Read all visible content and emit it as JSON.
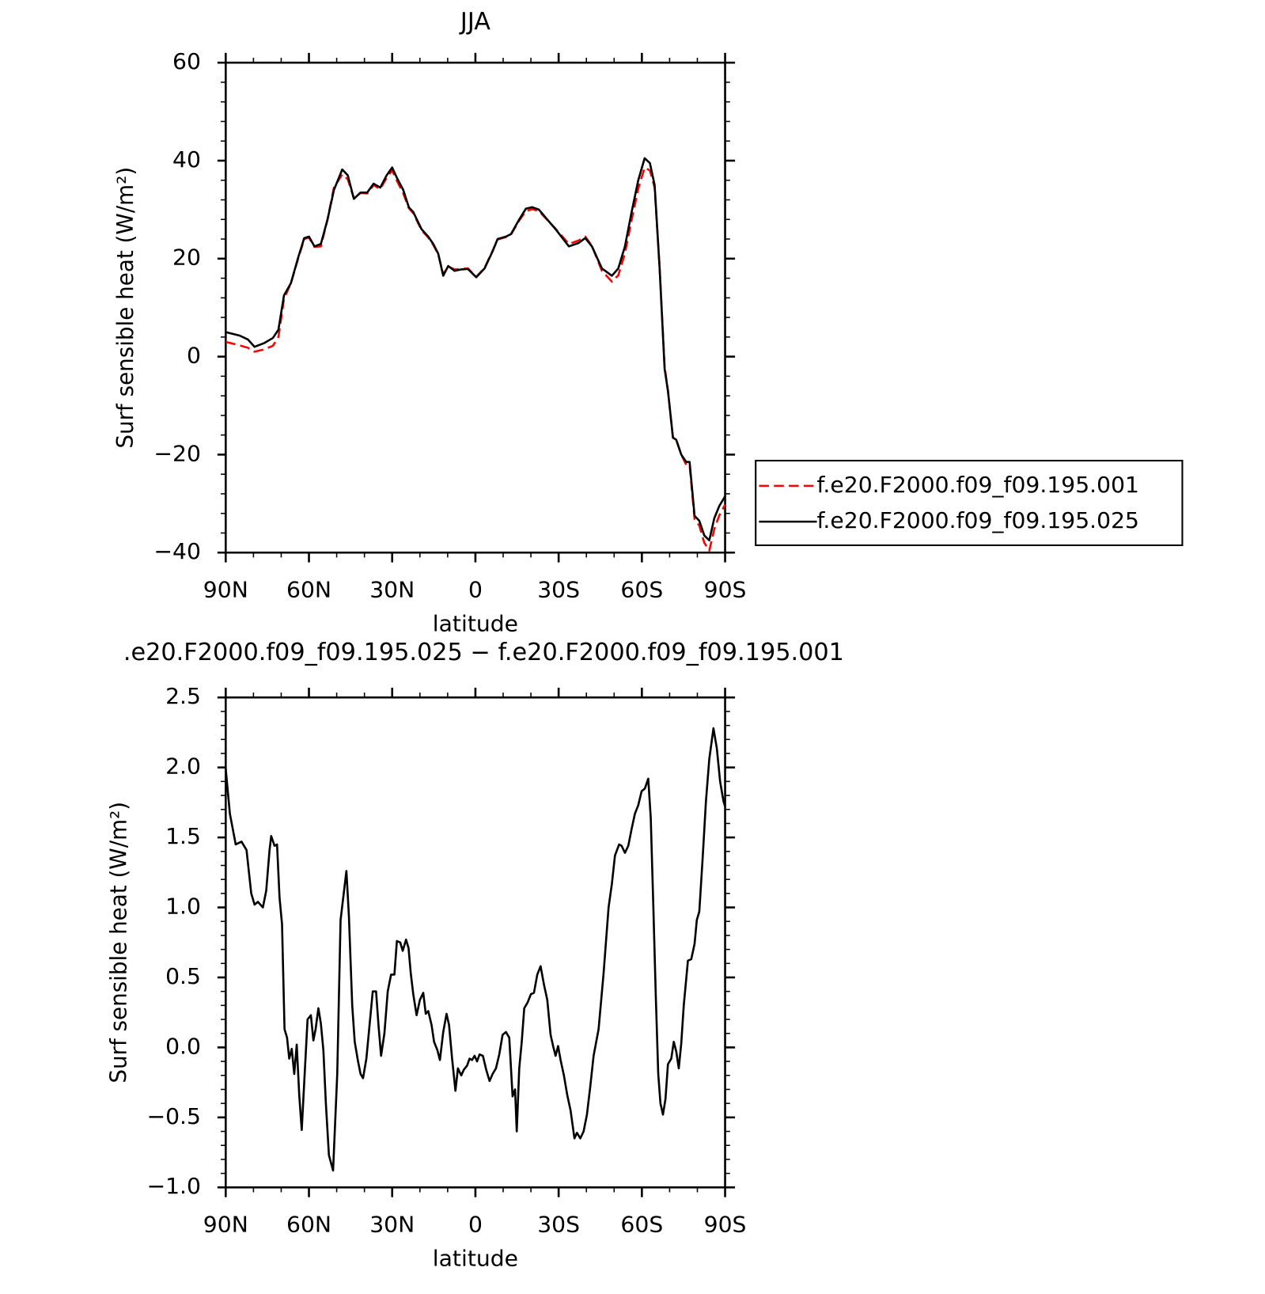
{
  "chart_data": [
    {
      "type": "line",
      "title": "JJA",
      "x_label": "latitude",
      "y_label": "Surf sensible heat (W/m²)",
      "xlim": [
        90,
        -90
      ],
      "xticks": [
        {
          "value": 90,
          "label": "90N"
        },
        {
          "value": 60,
          "label": "60N"
        },
        {
          "value": 30,
          "label": "30N"
        },
        0,
        {
          "value": -30,
          "label": "30S"
        },
        {
          "value": -60,
          "label": "60S"
        },
        {
          "value": -90,
          "label": "90S"
        }
      ],
      "ylim": [
        -40,
        60
      ],
      "yticks": [
        {
          "value": -40,
          "label": "−40"
        },
        {
          "value": -20,
          "label": "−20"
        },
        0,
        20,
        40,
        60
      ],
      "legend": "right",
      "x": [
        90,
        85,
        82,
        79.6,
        76,
        73,
        71,
        69,
        66.5,
        64,
        61.7,
        60,
        58,
        55.7,
        53.3,
        51,
        48,
        46,
        43.8,
        41.4,
        39,
        36.7,
        34.3,
        32,
        30,
        28.3,
        26,
        24,
        22.4,
        19.4,
        17,
        15.2,
        13.4,
        11.6,
        9.8,
        7.5,
        5.1,
        2.7,
        -0.3,
        -3.3,
        -6.2,
        -8,
        -11,
        -12.8,
        -15.8,
        -18.2,
        -20.5,
        -22.9,
        -25.9,
        -28.9,
        -33.7,
        -37.2,
        -39.6,
        -42,
        -45.6,
        -49.2,
        -51.5,
        -53.9,
        -56.3,
        -58.7,
        -61,
        -62.9,
        -64.6,
        -66.4,
        -68.2,
        -69.4,
        -71.2,
        -72.4,
        -74.2,
        -76,
        -77.2,
        -79,
        -80.7,
        -82.5,
        -84.3,
        -86.1,
        -87.9,
        -90
      ],
      "series": [
        {
          "name": "f.e20.F2000.f09_f09.195.001",
          "color": "#ff0000",
          "dashed": true,
          "values": [
            3,
            2.3,
            1.8,
            1,
            1.5,
            2.2,
            4,
            11.8,
            15,
            19.8,
            24,
            24.3,
            22.4,
            22.5,
            28,
            34.5,
            37.2,
            36.2,
            32.3,
            33.4,
            33.3,
            35,
            34.2,
            36.5,
            38,
            35.9,
            33.3,
            30.3,
            29.3,
            25.8,
            24.3,
            22.8,
            20.9,
            16.8,
            18.4,
            17.8,
            17.9,
            18,
            16.3,
            18.1,
            21.6,
            23.9,
            24.4,
            24.9,
            27.8,
            29.7,
            30.1,
            29.7,
            27.9,
            26.1,
            23,
            23.7,
            24.5,
            22.6,
            17.5,
            15.3,
            16.6,
            21.1,
            27.9,
            34.3,
            38.6,
            38,
            34.5,
            18.2,
            -2.1,
            -6.9,
            -16.6,
            -17,
            -20,
            -22.1,
            -22.1,
            -33.2,
            -34.5,
            -38,
            -39.6,
            -35.2,
            -32.4,
            -30.2
          ]
        },
        {
          "name": "f.e20.F2000.f09_f09.195.025",
          "color": "#000000",
          "dashed": false,
          "values": [
            5,
            4.3,
            3.5,
            2,
            2.8,
            3.8,
            5.5,
            12.5,
            15,
            20,
            24.2,
            24.5,
            22.5,
            23,
            28,
            34,
            38.2,
            37,
            32.2,
            33.5,
            33.5,
            35.3,
            34.5,
            37,
            38.6,
            36.5,
            34,
            30.5,
            29.5,
            26,
            24.5,
            23,
            21,
            16.5,
            18.5,
            17.5,
            17.8,
            17.9,
            16.2,
            18,
            21.5,
            24,
            24.5,
            25,
            28,
            30.2,
            30.5,
            30,
            28,
            26,
            22.5,
            23.2,
            24.2,
            22.5,
            18,
            16.5,
            18,
            22.5,
            29.5,
            36,
            40.5,
            39.5,
            35,
            18,
            -2.5,
            -7,
            -16.5,
            -17,
            -20,
            -21.5,
            -21.5,
            -32.5,
            -33.5,
            -36.5,
            -37.5,
            -33,
            -30.5,
            -28.5
          ]
        }
      ]
    },
    {
      "type": "line",
      "title": ".e20.F2000.f09_f09.195.025 − f.e20.F2000.f09_f09.195.001",
      "x_label": "latitude",
      "y_label": "Surf sensible heat (W/m²)",
      "xlim": [
        90,
        -90
      ],
      "xticks": [
        {
          "value": 90,
          "label": "90N"
        },
        {
          "value": 60,
          "label": "60N"
        },
        {
          "value": 30,
          "label": "30N"
        },
        0,
        {
          "value": -30,
          "label": "30S"
        },
        {
          "value": -60,
          "label": "60S"
        },
        {
          "value": -90,
          "label": "90S"
        }
      ],
      "ylim": [
        -1,
        2.5
      ],
      "yticks": [
        {
          "value": -1,
          "label": "−1.0"
        },
        {
          "value": -0.5,
          "label": "−0.5"
        },
        {
          "value": 0,
          "label": "0.0"
        },
        0.5,
        {
          "value": 1,
          "label": "1.0"
        },
        1.5,
        {
          "value": 2,
          "label": "2.0"
        },
        2.5
      ],
      "x": [
        90,
        88.5,
        86.4,
        84.3,
        82.5,
        80.8,
        79.6,
        78.4,
        76.6,
        75.4,
        74.2,
        73.6,
        72.4,
        71.5,
        70.6,
        69.7,
        68.8,
        67.9,
        67.1,
        66.2,
        65.3,
        64.4,
        63.5,
        62.6,
        61.7,
        60.5,
        59.3,
        58.4,
        57.6,
        56.6,
        55.7,
        54.8,
        53.9,
        52.8,
        51.3,
        49.8,
        48.6,
        46.5,
        45.6,
        44.4,
        43.5,
        42.3,
        41.4,
        40.5,
        39.3,
        38.2,
        37,
        35.8,
        34.9,
        34,
        32.8,
        31.6,
        30.4,
        29.2,
        28.3,
        27.1,
        26.2,
        25,
        24.1,
        23.3,
        22.4,
        21.2,
        20,
        18.8,
        17.9,
        17,
        15.8,
        14.9,
        13.7,
        12.8,
        11.6,
        10.4,
        9.5,
        8.4,
        7.2,
        6.3,
        5.1,
        4.2,
        3,
        2.1,
        1.2,
        0.3,
        -0.6,
        -1.5,
        -2.7,
        -3.9,
        -5.1,
        -6.2,
        -7.4,
        -8.6,
        -9.8,
        -11,
        -12.2,
        -13.4,
        -14.3,
        -14.9,
        -15.8,
        -16.7,
        -17.6,
        -18.8,
        -20,
        -21.1,
        -22.3,
        -23.5,
        -24.7,
        -25.9,
        -27.1,
        -28,
        -28.9,
        -29.8,
        -30.7,
        -31.9,
        -33.1,
        -34.3,
        -35.7,
        -36.6,
        -37.8,
        -39,
        -40.2,
        -41.4,
        -42.6,
        -44.4,
        -46.2,
        -48,
        -49.2,
        -50.3,
        -51.8,
        -52.7,
        -53.9,
        -55.1,
        -56.3,
        -57.5,
        -58.7,
        -59.9,
        -61.1,
        -62.3,
        -63.2,
        -64.1,
        -65,
        -65.9,
        -66.7,
        -67.6,
        -68.5,
        -69.4,
        -70.6,
        -71.5,
        -72.4,
        -73.3,
        -74.2,
        -75.1,
        -76.6,
        -77.8,
        -79,
        -79.8,
        -80.7,
        -81.9,
        -83.1,
        -84.3,
        -85.8,
        -87,
        -88.2,
        -89.4,
        -90
      ],
      "series": [
        {
          "color": "#000000",
          "dashed": false,
          "values": [
            1.99,
            1.67,
            1.45,
            1.47,
            1.41,
            1.1,
            1.02,
            1.04,
            1,
            1.12,
            1.41,
            1.51,
            1.44,
            1.45,
            1.07,
            0.88,
            0.13,
            0.07,
            -0.08,
            -0.01,
            -0.19,
            0.02,
            -0.34,
            -0.59,
            -0.25,
            0.2,
            0.23,
            0.05,
            0.13,
            0.28,
            0.17,
            -0.02,
            -0.4,
            -0.77,
            -0.88,
            -0.19,
            0.91,
            1.26,
            0.94,
            0.3,
            0.04,
            -0.1,
            -0.19,
            -0.22,
            -0.08,
            0.15,
            0.4,
            0.4,
            0.15,
            -0.06,
            0.1,
            0.4,
            0.52,
            0.52,
            0.76,
            0.75,
            0.69,
            0.77,
            0.71,
            0.53,
            0.38,
            0.23,
            0.34,
            0.39,
            0.24,
            0.26,
            0.16,
            0.04,
            -0.02,
            -0.09,
            0.11,
            0.24,
            0.16,
            -0.08,
            -0.31,
            -0.15,
            -0.2,
            -0.16,
            -0.13,
            -0.08,
            -0.09,
            -0.06,
            -0.1,
            -0.05,
            -0.06,
            -0.16,
            -0.24,
            -0.19,
            -0.15,
            -0.05,
            0.09,
            0.11,
            0.07,
            -0.35,
            -0.3,
            -0.6,
            -0.15,
            0.04,
            0.28,
            0.32,
            0.38,
            0.39,
            0.52,
            0.58,
            0.45,
            0.34,
            0.09,
            0.01,
            -0.06,
            0.01,
            -0.09,
            -0.2,
            -0.34,
            -0.45,
            -0.65,
            -0.61,
            -0.65,
            -0.6,
            -0.48,
            -0.28,
            -0.06,
            0.13,
            0.53,
            1,
            1.17,
            1.37,
            1.45,
            1.44,
            1.39,
            1.44,
            1.56,
            1.67,
            1.73,
            1.83,
            1.85,
            1.92,
            1.64,
            1.03,
            0.38,
            -0.19,
            -0.4,
            -0.48,
            -0.37,
            -0.12,
            -0.08,
            0.04,
            -0.03,
            -0.15,
            0.03,
            0.3,
            0.62,
            0.63,
            0.74,
            0.91,
            0.97,
            1.35,
            1.76,
            2.06,
            2.28,
            2.14,
            1.9,
            1.76,
            1.72
          ]
        }
      ]
    }
  ]
}
